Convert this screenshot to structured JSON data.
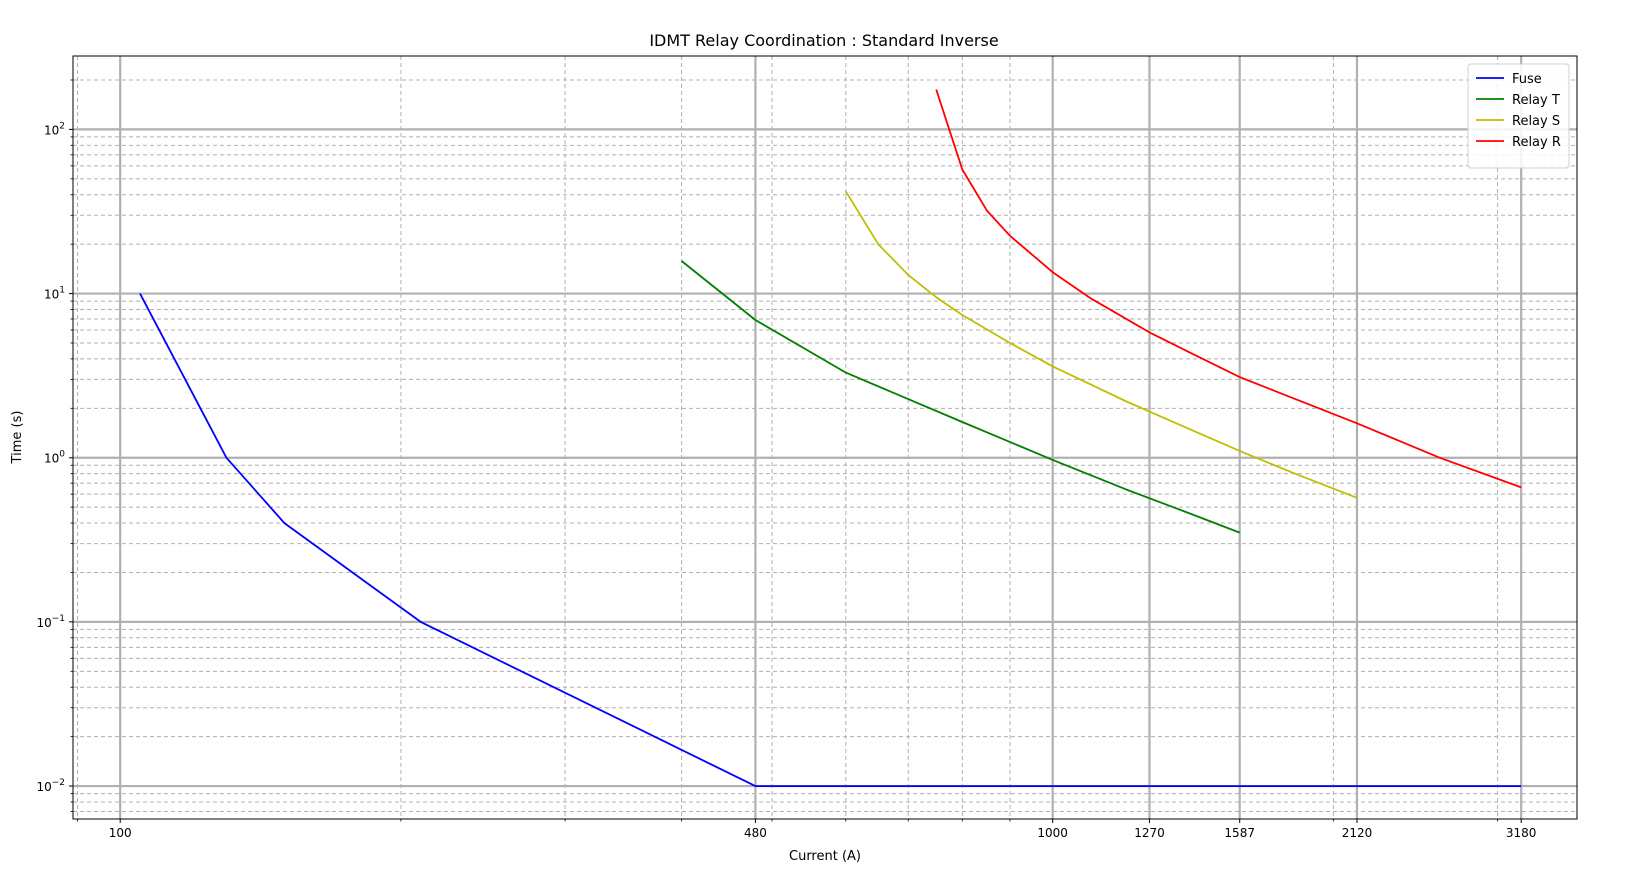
{
  "chart_data": {
    "type": "line",
    "title": "IDMT Relay Coordination : Standard Inverse",
    "xlabel": "Current (A)",
    "ylabel": "Time (s)",
    "xscale": "log",
    "yscale": "log",
    "xlim": [
      89,
      3650
    ],
    "ylim": [
      0.0063,
      280
    ],
    "grid": true,
    "legend_position": "top-right",
    "xticks": [
      100,
      480,
      1000,
      1270,
      1587,
      2120,
      3180
    ],
    "xtick_labels": [
      "100",
      "480",
      "1000",
      "1270",
      "1587",
      "2120",
      "3180"
    ],
    "yticks": [
      {
        "value": 0.01,
        "base": "10",
        "exp": "−2"
      },
      {
        "value": 0.1,
        "base": "10",
        "exp": "−1"
      },
      {
        "value": 1,
        "base": "10",
        "exp": "0"
      },
      {
        "value": 10,
        "base": "10",
        "exp": "1"
      },
      {
        "value": 100,
        "base": "10",
        "exp": "2"
      }
    ],
    "series": [
      {
        "name": "Fuse",
        "color": "#0000ff",
        "x": [
          105,
          130,
          150,
          210,
          480,
          3180
        ],
        "y": [
          10,
          1,
          0.4,
          0.1,
          0.01,
          0.01
        ]
      },
      {
        "name": "Relay T",
        "color": "#008000",
        "x": [
          400,
          480,
          600,
          800,
          1000,
          1200,
          1400,
          1587
        ],
        "y": [
          15.8,
          6.9,
          3.3,
          1.65,
          0.97,
          0.64,
          0.46,
          0.35
        ]
      },
      {
        "name": "Relay S",
        "color": "#bfbf00",
        "x": [
          600,
          650,
          700,
          750,
          800,
          900,
          1000,
          1200,
          1400,
          1587,
          1800,
          2120
        ],
        "y": [
          42,
          20,
          13,
          9.5,
          7.4,
          5.0,
          3.6,
          2.2,
          1.5,
          1.1,
          0.82,
          0.57
        ]
      },
      {
        "name": "Relay R",
        "color": "#ff0000",
        "x": [
          750,
          800,
          850,
          900,
          1000,
          1100,
          1270,
          1400,
          1587,
          2120,
          2600,
          3180
        ],
        "y": [
          175,
          57,
          32,
          22.5,
          13.5,
          9.3,
          5.8,
          4.4,
          3.1,
          1.62,
          1.0,
          0.66
        ]
      }
    ]
  }
}
